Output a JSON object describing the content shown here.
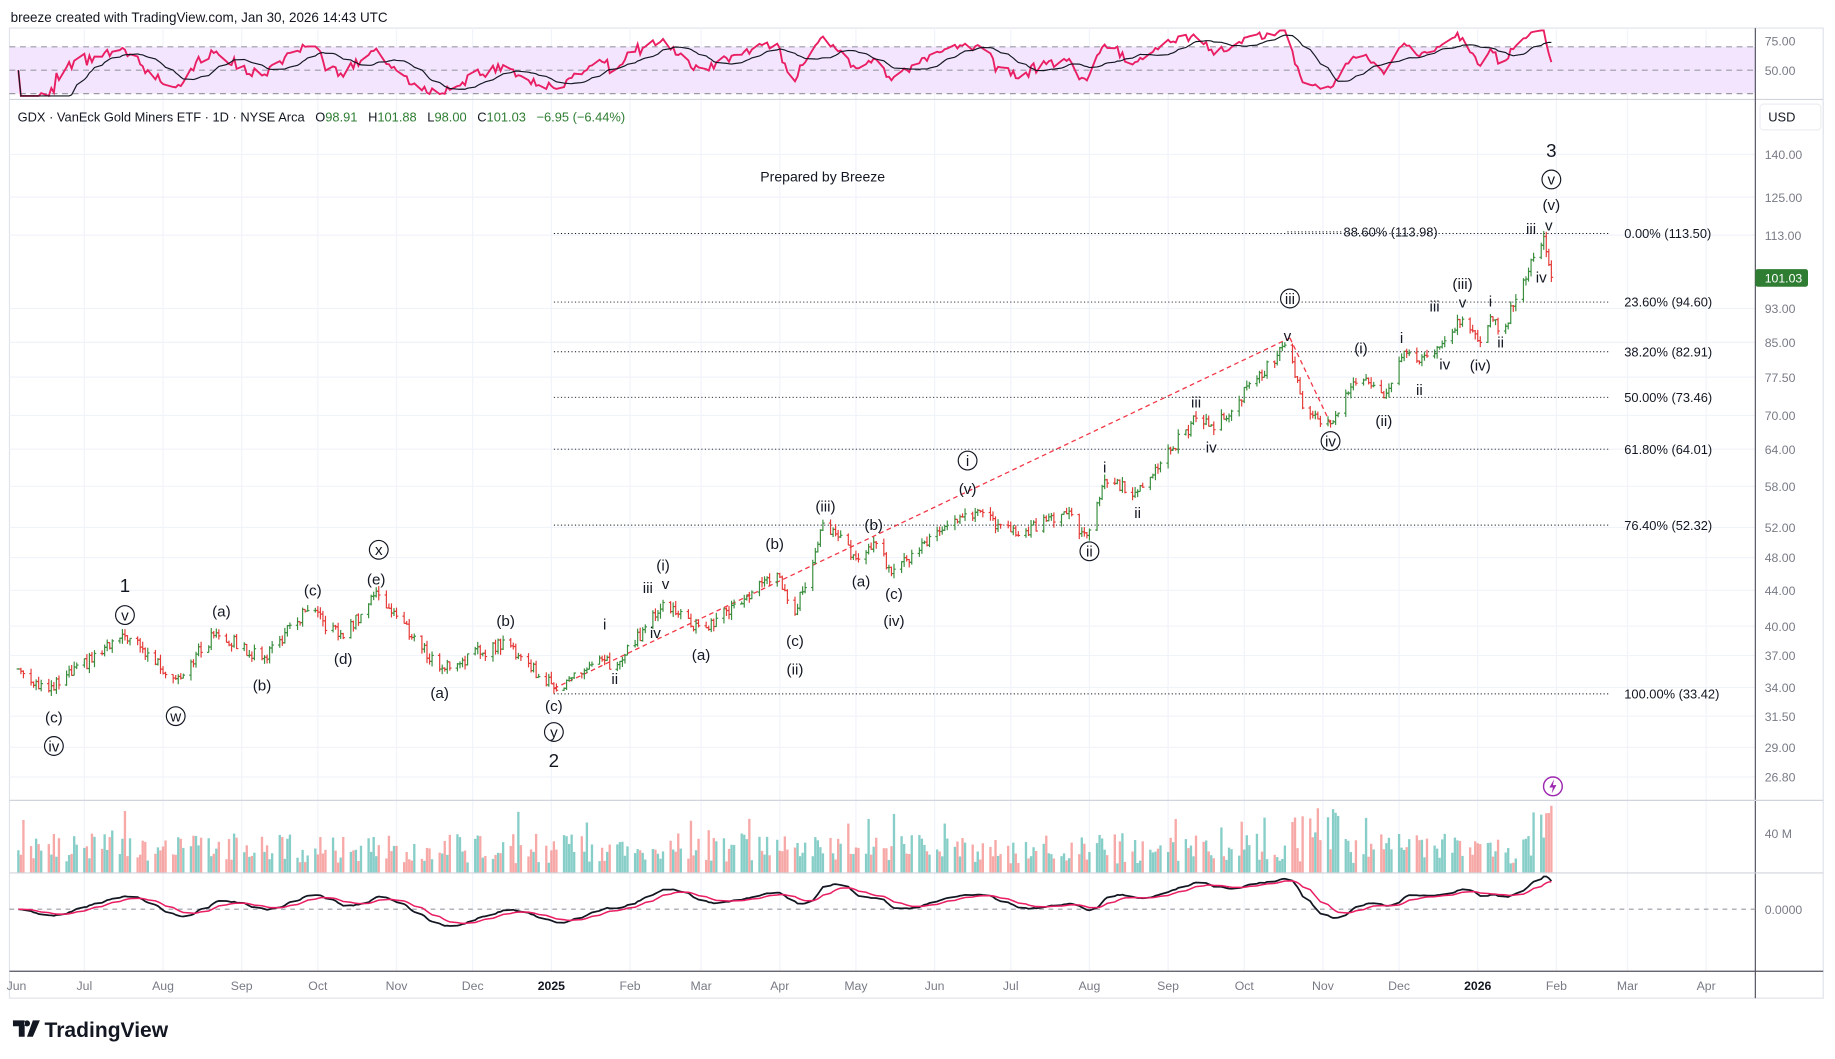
{
  "header": {
    "created": "breeze created with TradingView.com, Jan 30, 2026 14:43 UTC",
    "symbol": "GDX · VanEck Gold Miners ETF · 1D · NYSE Arca",
    "o_label": "O",
    "o": "98.91",
    "h_label": "H",
    "h": "101.88",
    "l_label": "L",
    "l": "98.00",
    "c_label": "C",
    "c": "101.03",
    "change": "−6.95 (−6.44%)"
  },
  "currency": "USD",
  "last_price": "101.03",
  "note": "Prepared by Breeze",
  "logo": "TradingView",
  "colors": {
    "up": "#388e3c",
    "down": "#e53935",
    "rsi": "#e91e63",
    "accent_green": "#2e7d32",
    "trend": "#f23645"
  },
  "chart_data": {
    "type": "ohlc",
    "title": "GDX · VanEck Gold Miners ETF · 1D",
    "scale": "log",
    "ylim": [
      26.8,
      140
    ],
    "price_ticks": [
      "140.00",
      "125.00",
      "113.00",
      "93.00",
      "85.00",
      "77.50",
      "70.00",
      "64.00",
      "58.00",
      "52.00",
      "48.00",
      "44.00",
      "40.00",
      "37.00",
      "34.00",
      "31.50",
      "29.00",
      "26.80"
    ],
    "rsi_ticks": [
      "75.00",
      "50.00"
    ],
    "volume_tick": "40 M",
    "macd_tick": "0.0000",
    "time_labels": [
      {
        "text": "Jun",
        "date": "2024-06-01"
      },
      {
        "text": "Jul",
        "date": "2024-07-01"
      },
      {
        "text": "Aug",
        "date": "2024-08-01"
      },
      {
        "text": "Sep",
        "date": "2024-09-01"
      },
      {
        "text": "Oct",
        "date": "2024-10-01"
      },
      {
        "text": "Nov",
        "date": "2024-11-01"
      },
      {
        "text": "Dec",
        "date": "2024-12-01"
      },
      {
        "text": "2025",
        "date": "2025-01-01",
        "bold": true
      },
      {
        "text": "Feb",
        "date": "2025-02-01"
      },
      {
        "text": "Mar",
        "date": "2025-03-01"
      },
      {
        "text": "Apr",
        "date": "2025-04-01"
      },
      {
        "text": "May",
        "date": "2025-05-01"
      },
      {
        "text": "Jun",
        "date": "2025-06-01"
      },
      {
        "text": "Jul",
        "date": "2025-07-01"
      },
      {
        "text": "Aug",
        "date": "2025-08-01"
      },
      {
        "text": "Sep",
        "date": "2025-09-01"
      },
      {
        "text": "Oct",
        "date": "2025-10-01"
      },
      {
        "text": "Nov",
        "date": "2025-11-01"
      },
      {
        "text": "Dec",
        "date": "2025-12-01"
      },
      {
        "text": "2026",
        "date": "2026-01-01",
        "bold": true
      },
      {
        "text": "Feb",
        "date": "2026-02-01"
      },
      {
        "text": "Mar",
        "date": "2026-03-01"
      },
      {
        "text": "Apr",
        "date": "2026-04-01"
      }
    ],
    "price_path": [
      [
        "2024-06-05",
        35.7
      ],
      [
        "2024-06-17",
        33.7
      ],
      [
        "2024-07-17",
        39.0
      ],
      [
        "2024-08-06",
        34.8
      ],
      [
        "2024-08-22",
        39.3
      ],
      [
        "2024-09-09",
        36.7
      ],
      [
        "2024-09-27",
        41.7
      ],
      [
        "2024-10-11",
        38.8
      ],
      [
        "2024-10-24",
        43.9
      ],
      [
        "2024-11-18",
        35.7
      ],
      [
        "2024-12-14",
        38.4
      ],
      [
        "2025-01-02",
        33.9
      ],
      [
        "2025-01-21",
        36.6
      ],
      [
        "2025-01-26",
        35.7
      ],
      [
        "2025-02-14",
        42.6
      ],
      [
        "2025-03-01",
        39.5
      ],
      [
        "2025-03-31",
        46.0
      ],
      [
        "2025-04-07",
        41.3
      ],
      [
        "2025-04-18",
        52.6
      ],
      [
        "2025-05-03",
        47.4
      ],
      [
        "2025-05-08",
        50.0
      ],
      [
        "2025-05-15",
        46.0
      ],
      [
        "2025-06-14",
        54.6
      ],
      [
        "2025-07-04",
        50.9
      ],
      [
        "2025-07-22",
        54.2
      ],
      [
        "2025-07-31",
        50.9
      ],
      [
        "2025-08-07",
        59.0
      ],
      [
        "2025-08-20",
        57.2
      ],
      [
        "2025-09-13",
        70.0
      ],
      [
        "2025-09-19",
        67.4
      ],
      [
        "2025-10-18",
        84.8
      ],
      [
        "2025-10-24",
        71.4
      ],
      [
        "2025-11-04",
        68.5
      ],
      [
        "2025-11-15",
        77.8
      ],
      [
        "2025-11-25",
        73.4
      ],
      [
        "2025-12-03",
        83.0
      ],
      [
        "2025-12-09",
        80.6
      ],
      [
        "2025-12-26",
        90.4
      ],
      [
        "2026-01-02",
        85.0
      ],
      [
        "2026-01-06",
        91.0
      ],
      [
        "2026-01-10",
        86.8
      ],
      [
        "2026-01-27",
        112.6
      ],
      [
        "2026-01-30",
        101.03
      ]
    ],
    "fib_levels": [
      {
        "label": "0.00% (113.50)",
        "price": 113.5
      },
      {
        "label": "23.60% (94.60)",
        "price": 94.6
      },
      {
        "label": "38.20% (82.91)",
        "price": 82.91
      },
      {
        "label": "50.00% (73.46)",
        "price": 73.46
      },
      {
        "label": "61.80% (64.01)",
        "price": 64.01
      },
      {
        "label": "76.40% (52.32)",
        "price": 52.32
      },
      {
        "label": "100.00% (33.42)",
        "price": 33.42
      }
    ],
    "fib_range": [
      "2025-01-02",
      "2026-01-30"
    ],
    "fib_extension": {
      "label": "88.60% (113.98)",
      "price": 113.98,
      "from": "2025-10-18"
    },
    "trendlines": [
      {
        "from": [
          "2025-01-02",
          33.9
        ],
        "to": [
          "2025-10-19",
          86.0
        ]
      },
      {
        "from": [
          "2025-10-19",
          86.0
        ],
        "to": [
          "2025-11-04",
          68.5
        ]
      }
    ],
    "annotations": [
      {
        "t": "(c)",
        "d": "2024-06-19",
        "p": 31.4
      },
      {
        "t": "iv",
        "d": "2024-06-19",
        "p": 29.1,
        "c": true
      },
      {
        "t": "1",
        "d": "2024-07-17",
        "p": 44.4,
        "big": true
      },
      {
        "t": "v",
        "d": "2024-07-17",
        "p": 41.2,
        "c": true
      },
      {
        "t": "w",
        "d": "2024-08-06",
        "p": 31.5,
        "c": true
      },
      {
        "t": "(a)",
        "d": "2024-08-24",
        "p": 41.6
      },
      {
        "t": "(b)",
        "d": "2024-09-09",
        "p": 34.2
      },
      {
        "t": "(c)",
        "d": "2024-09-29",
        "p": 44.0
      },
      {
        "t": "(d)",
        "d": "2024-10-11",
        "p": 36.7
      },
      {
        "t": "(e)",
        "d": "2024-10-24",
        "p": 45.3
      },
      {
        "t": "x",
        "d": "2024-10-25",
        "p": 49.0,
        "c": true
      },
      {
        "t": "(a)",
        "d": "2024-11-18",
        "p": 33.5
      },
      {
        "t": "(b)",
        "d": "2024-12-14",
        "p": 40.6
      },
      {
        "t": "(c)",
        "d": "2025-01-02",
        "p": 32.4
      },
      {
        "t": "y",
        "d": "2025-01-02",
        "p": 30.2,
        "c": true
      },
      {
        "t": "2",
        "d": "2025-01-02",
        "p": 27.9,
        "big": true
      },
      {
        "t": "i",
        "d": "2025-01-22",
        "p": 40.2
      },
      {
        "t": "ii",
        "d": "2025-01-26",
        "p": 34.8
      },
      {
        "t": "iii",
        "d": "2025-02-08",
        "p": 44.3
      },
      {
        "t": "iv",
        "d": "2025-02-11",
        "p": 39.3
      },
      {
        "t": "(i)",
        "d": "2025-02-14",
        "p": 47.0
      },
      {
        "t": "v",
        "d": "2025-02-15",
        "p": 44.8
      },
      {
        "t": "(a)",
        "d": "2025-03-01",
        "p": 37.1
      },
      {
        "t": "(b)",
        "d": "2025-03-30",
        "p": 49.8
      },
      {
        "t": "(c)",
        "d": "2025-04-07",
        "p": 38.5
      },
      {
        "t": "(ii)",
        "d": "2025-04-07",
        "p": 35.7
      },
      {
        "t": "(iii)",
        "d": "2025-04-19",
        "p": 55.0
      },
      {
        "t": "(a)",
        "d": "2025-05-03",
        "p": 45.1
      },
      {
        "t": "(b)",
        "d": "2025-05-08",
        "p": 52.4
      },
      {
        "t": "(c)",
        "d": "2025-05-16",
        "p": 43.6
      },
      {
        "t": "(iv)",
        "d": "2025-05-16",
        "p": 40.6
      },
      {
        "t": "(v)",
        "d": "2025-06-14",
        "p": 57.6
      },
      {
        "t": "i",
        "d": "2025-06-14",
        "p": 62.1,
        "c": true
      },
      {
        "t": "ii",
        "d": "2025-08-01",
        "p": 48.8,
        "c": true
      },
      {
        "t": "i",
        "d": "2025-08-07",
        "p": 61.0
      },
      {
        "t": "ii",
        "d": "2025-08-20",
        "p": 54.1
      },
      {
        "t": "iii",
        "d": "2025-09-12",
        "p": 72.5
      },
      {
        "t": "iv",
        "d": "2025-09-18",
        "p": 64.3
      },
      {
        "t": "v",
        "d": "2025-10-18",
        "p": 86.5
      },
      {
        "t": "iii",
        "d": "2025-10-19",
        "p": 95.5,
        "c": true
      },
      {
        "t": "iv",
        "d": "2025-11-04",
        "p": 65.4,
        "c": true
      },
      {
        "t": "(i)",
        "d": "2025-11-16",
        "p": 83.7
      },
      {
        "t": "(ii)",
        "d": "2025-11-25",
        "p": 69.0
      },
      {
        "t": "i",
        "d": "2025-12-02",
        "p": 86.0
      },
      {
        "t": "ii",
        "d": "2025-12-09",
        "p": 75.0
      },
      {
        "t": "iii",
        "d": "2025-12-15",
        "p": 93.5
      },
      {
        "t": "iv",
        "d": "2025-12-19",
        "p": 80.2
      },
      {
        "t": "(iii)",
        "d": "2025-12-26",
        "p": 99.3
      },
      {
        "t": "v",
        "d": "2025-12-26",
        "p": 94.5
      },
      {
        "t": "(iv)",
        "d": "2026-01-02",
        "p": 80.0
      },
      {
        "t": "i",
        "d": "2026-01-06",
        "p": 94.8
      },
      {
        "t": "ii",
        "d": "2026-01-10",
        "p": 85.0
      },
      {
        "t": "iii",
        "d": "2026-01-22",
        "p": 114.9
      },
      {
        "t": "iv",
        "d": "2026-01-26",
        "p": 101.0
      },
      {
        "t": "v",
        "d": "2026-01-29",
        "p": 116.0
      },
      {
        "t": "(v)",
        "d": "2026-01-30",
        "p": 122.5
      },
      {
        "t": "v",
        "d": "2026-01-30",
        "p": 131.0,
        "c": true
      },
      {
        "t": "3",
        "d": "2026-01-30",
        "p": 141.0,
        "big": true
      }
    ]
  }
}
